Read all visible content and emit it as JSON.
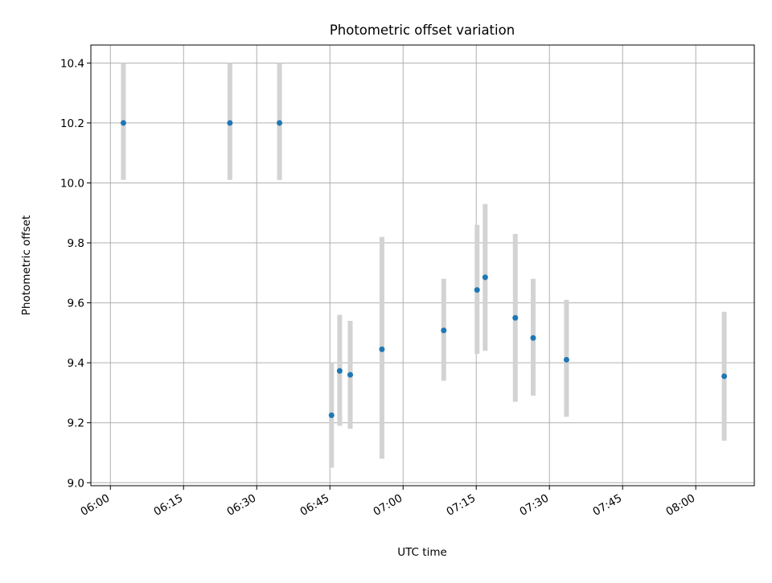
{
  "chart_data": {
    "type": "scatter",
    "title": "Photometric offset variation",
    "xlabel": "UTC time",
    "ylabel": "Photometric offset",
    "xlim": [
      "05:56",
      "08:12"
    ],
    "ylim": [
      8.99,
      10.46
    ],
    "x_ticks": [
      "06:00",
      "06:15",
      "06:30",
      "06:45",
      "07:00",
      "07:15",
      "07:30",
      "07:45",
      "08:00"
    ],
    "y_ticks": [
      "9.0",
      "9.2",
      "9.4",
      "9.6",
      "9.8",
      "10.0",
      "10.2",
      "10.4"
    ],
    "grid": true,
    "point_color": "#1f77b4",
    "errorbar_color": "#d3d3d3",
    "points": [
      {
        "x": "06:02:40",
        "y": 10.2,
        "ylow": 10.01,
        "yhigh": 10.4
      },
      {
        "x": "06:24:30",
        "y": 10.2,
        "ylow": 10.01,
        "yhigh": 10.4
      },
      {
        "x": "06:34:40",
        "y": 10.2,
        "ylow": 10.01,
        "yhigh": 10.4
      },
      {
        "x": "06:45:20",
        "y": 9.225,
        "ylow": 9.05,
        "yhigh": 9.4
      },
      {
        "x": "06:47:00",
        "y": 9.373,
        "ylow": 9.19,
        "yhigh": 9.56
      },
      {
        "x": "06:49:10",
        "y": 9.36,
        "ylow": 9.18,
        "yhigh": 9.54
      },
      {
        "x": "06:55:40",
        "y": 9.445,
        "ylow": 9.08,
        "yhigh": 9.82
      },
      {
        "x": "07:08:20",
        "y": 9.508,
        "ylow": 9.34,
        "yhigh": 9.68
      },
      {
        "x": "07:15:10",
        "y": 9.643,
        "ylow": 9.43,
        "yhigh": 9.86
      },
      {
        "x": "07:16:50",
        "y": 9.685,
        "ylow": 9.44,
        "yhigh": 9.93
      },
      {
        "x": "07:23:00",
        "y": 9.55,
        "ylow": 9.27,
        "yhigh": 9.83
      },
      {
        "x": "07:26:40",
        "y": 9.483,
        "ylow": 9.29,
        "yhigh": 9.68
      },
      {
        "x": "07:33:30",
        "y": 9.41,
        "ylow": 9.22,
        "yhigh": 9.61
      },
      {
        "x": "08:05:50",
        "y": 9.355,
        "ylow": 9.14,
        "yhigh": 9.57
      }
    ]
  }
}
